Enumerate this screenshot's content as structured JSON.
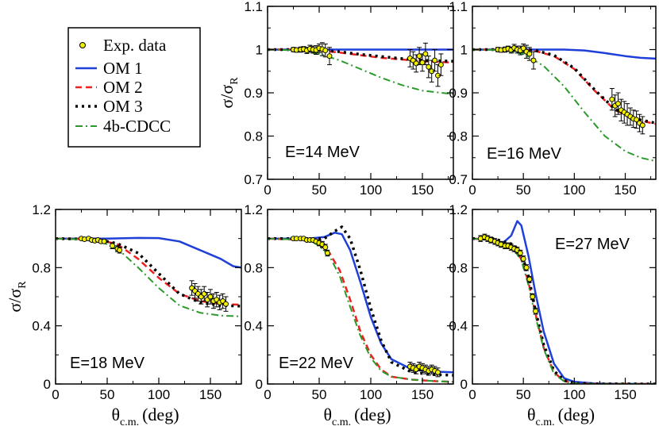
{
  "figure": {
    "x_label_main": "θ",
    "x_label_sub": "c.m.",
    "x_label_unit": "(deg)",
    "y_label_main": "σ/σ",
    "y_label_sub": "R"
  },
  "legend": [
    {
      "label": "Exp. data",
      "style": "marker",
      "color": "#f0f000"
    },
    {
      "label": "OM 1",
      "style": "solid",
      "color": "#1f3fd9"
    },
    {
      "label": "OM 2",
      "style": "dashed",
      "color": "#ee2020"
    },
    {
      "label": "OM 3",
      "style": "dotted",
      "color": "#000000"
    },
    {
      "label": "4b-CDCC",
      "style": "dashdot",
      "color": "#2a9a2a"
    }
  ],
  "chart_data": [
    {
      "type": "line",
      "panel_label": "E=14 MeV",
      "xlim": [
        0,
        180
      ],
      "ylim": [
        0.7,
        1.1
      ],
      "xticks": [
        "0",
        "50",
        "100",
        "150"
      ],
      "xtick_values": [
        0,
        50,
        100,
        150
      ],
      "yticks": [
        "0.7",
        "0.8",
        "0.9",
        "1",
        "1.1"
      ],
      "ytick_values": [
        0.7,
        0.8,
        0.9,
        1.0,
        1.1
      ],
      "show_xlabel": false,
      "show_ylabel": true,
      "series": [
        {
          "name": "OM 1",
          "x": [
            0,
            180
          ],
          "y": [
            1.0,
            1.0
          ]
        },
        {
          "name": "OM 2",
          "x": [
            0,
            30,
            50,
            70,
            90,
            110,
            130,
            150,
            180
          ],
          "y": [
            1.0,
            1.0,
            0.998,
            0.993,
            0.987,
            0.981,
            0.977,
            0.973,
            0.97
          ]
        },
        {
          "name": "OM 3",
          "x": [
            0,
            30,
            50,
            70,
            90,
            110,
            130,
            150,
            180
          ],
          "y": [
            1.0,
            1.0,
            0.999,
            0.995,
            0.989,
            0.984,
            0.979,
            0.975,
            0.973
          ]
        },
        {
          "name": "4b-CDCC",
          "x": [
            0,
            30,
            50,
            70,
            90,
            110,
            130,
            150,
            180
          ],
          "y": [
            1.0,
            0.998,
            0.99,
            0.975,
            0.955,
            0.935,
            0.918,
            0.905,
            0.897
          ]
        }
      ],
      "exp_data": {
        "x": [
          25,
          28,
          32,
          35,
          38,
          41,
          44,
          47,
          50,
          53,
          56,
          60,
          138,
          141,
          144,
          147,
          150,
          153,
          156,
          159,
          162,
          165,
          168
        ],
        "y": [
          1.0,
          0.999,
          1.0,
          1.001,
          0.998,
          1.002,
          1.0,
          0.999,
          1.003,
          1.001,
          0.998,
          0.985,
          0.98,
          0.975,
          0.968,
          0.985,
          0.97,
          0.99,
          0.96,
          0.95,
          0.975,
          0.94,
          0.965
        ],
        "err": [
          0.005,
          0.005,
          0.006,
          0.006,
          0.007,
          0.008,
          0.008,
          0.01,
          0.01,
          0.015,
          0.015,
          0.02,
          0.02,
          0.02,
          0.02,
          0.02,
          0.02,
          0.025,
          0.025,
          0.025,
          0.025,
          0.025,
          0.025
        ]
      }
    },
    {
      "type": "line",
      "panel_label": "E=16 MeV",
      "xlim": [
        0,
        180
      ],
      "ylim": [
        0.7,
        1.1
      ],
      "xticks": [
        "0",
        "50",
        "100",
        "150"
      ],
      "xtick_values": [
        0,
        50,
        100,
        150
      ],
      "yticks": [
        "0.7",
        "0.8",
        "0.9",
        "1",
        "1.1"
      ],
      "ytick_values": [
        0.7,
        0.8,
        0.9,
        1.0,
        1.1
      ],
      "show_xlabel": false,
      "show_ylabel": false,
      "series": [
        {
          "name": "OM 1",
          "x": [
            0,
            60,
            90,
            110,
            130,
            150,
            165,
            180
          ],
          "y": [
            1.0,
            1.0,
            1.0,
            0.998,
            0.992,
            0.985,
            0.981,
            0.979
          ]
        },
        {
          "name": "OM 2",
          "x": [
            0,
            40,
            60,
            80,
            100,
            120,
            140,
            160,
            180
          ],
          "y": [
            1.0,
            1.0,
            0.998,
            0.985,
            0.955,
            0.905,
            0.86,
            0.838,
            0.828
          ]
        },
        {
          "name": "OM 3",
          "x": [
            0,
            40,
            60,
            80,
            100,
            120,
            140,
            160,
            180
          ],
          "y": [
            1.0,
            1.0,
            0.999,
            0.987,
            0.957,
            0.907,
            0.862,
            0.84,
            0.83
          ]
        },
        {
          "name": "4b-CDCC",
          "x": [
            0,
            30,
            50,
            70,
            90,
            110,
            130,
            150,
            165,
            180
          ],
          "y": [
            1.0,
            0.999,
            0.99,
            0.962,
            0.915,
            0.855,
            0.8,
            0.765,
            0.75,
            0.742
          ]
        }
      ],
      "exp_data": {
        "x": [
          25,
          28,
          32,
          35,
          38,
          41,
          44,
          47,
          50,
          53,
          56,
          60,
          137,
          140,
          143,
          146,
          149,
          152,
          155,
          158,
          161,
          164,
          167
        ],
        "y": [
          1.0,
          0.999,
          1.0,
          1.002,
          0.999,
          1.004,
          1.0,
          0.998,
          1.003,
          0.995,
          0.99,
          0.975,
          0.885,
          0.87,
          0.875,
          0.86,
          0.855,
          0.85,
          0.845,
          0.84,
          0.838,
          0.83,
          0.825
        ],
        "err": [
          0.005,
          0.005,
          0.006,
          0.006,
          0.007,
          0.008,
          0.008,
          0.01,
          0.01,
          0.015,
          0.015,
          0.02,
          0.025,
          0.025,
          0.025,
          0.025,
          0.025,
          0.025,
          0.02,
          0.02,
          0.02,
          0.02,
          0.02
        ]
      }
    },
    {
      "type": "line",
      "panel_label": "E=18 MeV",
      "xlim": [
        0,
        180
      ],
      "ylim": [
        0,
        1.2
      ],
      "xticks": [
        "0",
        "50",
        "100",
        "150"
      ],
      "xtick_values": [
        0,
        50,
        100,
        150
      ],
      "yticks": [
        "0",
        "0.4",
        "0.8",
        "1.2"
      ],
      "ytick_values": [
        0,
        0.4,
        0.8,
        1.2
      ],
      "show_xlabel": false,
      "show_ylabel": true,
      "series": [
        {
          "name": "OM 1",
          "x": [
            0,
            50,
            80,
            100,
            120,
            140,
            160,
            172,
            180
          ],
          "y": [
            1.0,
            1.0,
            1.004,
            1.003,
            0.98,
            0.92,
            0.86,
            0.81,
            0.8
          ]
        },
        {
          "name": "OM 2",
          "x": [
            0,
            40,
            60,
            80,
            100,
            120,
            140,
            160,
            180
          ],
          "y": [
            1.0,
            0.995,
            0.96,
            0.86,
            0.73,
            0.62,
            0.57,
            0.55,
            0.545
          ]
        },
        {
          "name": "OM 3",
          "x": [
            0,
            40,
            60,
            80,
            100,
            120,
            140,
            160,
            180
          ],
          "y": [
            1.0,
            0.995,
            0.965,
            0.9,
            0.76,
            0.62,
            0.56,
            0.54,
            0.535
          ]
        },
        {
          "name": "4b-CDCC",
          "x": [
            0,
            40,
            60,
            80,
            100,
            120,
            140,
            160,
            180
          ],
          "y": [
            1.0,
            0.99,
            0.93,
            0.8,
            0.66,
            0.54,
            0.49,
            0.47,
            0.465
          ]
        }
      ],
      "exp_data": {
        "x": [
          25,
          28,
          32,
          35,
          38,
          41,
          44,
          47,
          55,
          60,
          62,
          132,
          135,
          138,
          141,
          144,
          147,
          150,
          153,
          156,
          159,
          162,
          165
        ],
        "y": [
          1.0,
          0.995,
          1.0,
          0.99,
          0.985,
          0.99,
          0.98,
          0.98,
          0.95,
          0.93,
          0.92,
          0.66,
          0.64,
          0.62,
          0.6,
          0.62,
          0.58,
          0.6,
          0.57,
          0.58,
          0.56,
          0.57,
          0.55
        ],
        "err": [
          0.01,
          0.01,
          0.01,
          0.01,
          0.01,
          0.01,
          0.01,
          0.01,
          0.02,
          0.02,
          0.02,
          0.05,
          0.05,
          0.05,
          0.05,
          0.05,
          0.05,
          0.05,
          0.05,
          0.05,
          0.05,
          0.05,
          0.05
        ]
      }
    },
    {
      "type": "line",
      "panel_label": "E=22 MeV",
      "xlim": [
        0,
        180
      ],
      "ylim": [
        0,
        1.2
      ],
      "xticks": [
        "0",
        "50",
        "100",
        "150"
      ],
      "xtick_values": [
        0,
        50,
        100,
        150
      ],
      "yticks": [
        "0",
        "0.4",
        "0.8",
        "1.2"
      ],
      "ytick_values": [
        0,
        0.4,
        0.8,
        1.2
      ],
      "show_xlabel": true,
      "show_ylabel": false,
      "series": [
        {
          "name": "OM 1",
          "x": [
            0,
            40,
            55,
            65,
            72,
            80,
            90,
            100,
            110,
            120,
            140,
            160,
            180
          ],
          "y": [
            1.0,
            1.0,
            1.01,
            1.04,
            1.03,
            0.92,
            0.7,
            0.46,
            0.28,
            0.17,
            0.1,
            0.085,
            0.08
          ]
        },
        {
          "name": "OM 2",
          "x": [
            0,
            40,
            50,
            60,
            70,
            80,
            90,
            100,
            110,
            120,
            140,
            160,
            180
          ],
          "y": [
            1.0,
            0.99,
            0.96,
            0.9,
            0.78,
            0.58,
            0.36,
            0.2,
            0.1,
            0.05,
            0.03,
            0.02,
            0.015
          ]
        },
        {
          "name": "OM 3",
          "x": [
            0,
            40,
            55,
            65,
            72,
            80,
            90,
            100,
            110,
            120,
            140,
            160,
            180
          ],
          "y": [
            1.0,
            1.0,
            1.0,
            1.05,
            1.08,
            1.0,
            0.78,
            0.52,
            0.3,
            0.15,
            0.08,
            0.065,
            0.06
          ]
        },
        {
          "name": "4b-CDCC",
          "x": [
            0,
            40,
            50,
            60,
            70,
            80,
            90,
            100,
            110,
            120,
            140,
            160,
            180
          ],
          "y": [
            1.0,
            0.99,
            0.95,
            0.88,
            0.74,
            0.53,
            0.33,
            0.18,
            0.09,
            0.05,
            0.03,
            0.02,
            0.015
          ]
        }
      ],
      "exp_data": {
        "x": [
          25,
          28,
          32,
          35,
          38,
          41,
          44,
          47,
          50,
          53,
          56,
          58,
          138,
          141,
          144,
          147,
          150,
          153,
          156,
          159,
          162,
          165
        ],
        "y": [
          1.0,
          1.0,
          1.0,
          1.0,
          0.99,
          0.99,
          0.99,
          0.98,
          0.97,
          0.96,
          0.94,
          0.9,
          0.12,
          0.11,
          0.1,
          0.12,
          0.11,
          0.1,
          0.09,
          0.1,
          0.09,
          0.08
        ],
        "err": [
          0.01,
          0.01,
          0.01,
          0.01,
          0.01,
          0.01,
          0.01,
          0.01,
          0.02,
          0.02,
          0.02,
          0.02,
          0.03,
          0.03,
          0.03,
          0.03,
          0.03,
          0.03,
          0.03,
          0.03,
          0.03,
          0.03
        ]
      }
    },
    {
      "type": "line",
      "panel_label": "E=27 MeV",
      "xlim": [
        0,
        180
      ],
      "ylim": [
        0,
        1.2
      ],
      "xticks": [
        "0",
        "50",
        "100",
        "150"
      ],
      "xtick_values": [
        0,
        50,
        100,
        150
      ],
      "yticks": [
        "0",
        "0.4",
        "0.8",
        "1.2"
      ],
      "ytick_values": [
        0,
        0.4,
        0.8,
        1.2
      ],
      "show_xlabel": true,
      "show_ylabel": false,
      "series": [
        {
          "name": "OM 1",
          "x": [
            0,
            20,
            30,
            38,
            44,
            48,
            55,
            62,
            70,
            80,
            90,
            100,
            120,
            140,
            180
          ],
          "y": [
            1.0,
            0.99,
            0.97,
            1.02,
            1.12,
            1.09,
            0.88,
            0.62,
            0.36,
            0.14,
            0.04,
            0.015,
            0.003,
            0.001,
            0.0
          ]
        },
        {
          "name": "OM 2",
          "x": [
            0,
            20,
            30,
            40,
            48,
            55,
            62,
            70,
            80,
            90,
            100,
            120,
            180
          ],
          "y": [
            1.0,
            0.99,
            0.96,
            0.93,
            0.86,
            0.7,
            0.48,
            0.25,
            0.08,
            0.02,
            0.005,
            0.001,
            0.0
          ]
        },
        {
          "name": "OM 3",
          "x": [
            0,
            20,
            30,
            40,
            48,
            55,
            62,
            70,
            80,
            90,
            100,
            120,
            180
          ],
          "y": [
            1.0,
            1.0,
            0.98,
            0.96,
            0.9,
            0.74,
            0.5,
            0.27,
            0.09,
            0.025,
            0.006,
            0.001,
            0.0
          ]
        },
        {
          "name": "4b-CDCC",
          "x": [
            0,
            20,
            30,
            40,
            48,
            55,
            62,
            70,
            80,
            90,
            100,
            120,
            180
          ],
          "y": [
            1.0,
            0.99,
            0.96,
            0.93,
            0.85,
            0.68,
            0.46,
            0.24,
            0.07,
            0.018,
            0.004,
            0.001,
            0.0
          ]
        }
      ],
      "exp_data": {
        "x": [
          8,
          12,
          15,
          18,
          22,
          25,
          28,
          32,
          35,
          38,
          41,
          44,
          47,
          50,
          53,
          56,
          59,
          62
        ],
        "y": [
          1.0,
          1.01,
          1.0,
          0.99,
          0.98,
          0.97,
          0.96,
          0.95,
          0.95,
          0.94,
          0.93,
          0.92,
          0.9,
          0.86,
          0.8,
          0.72,
          0.6,
          0.5
        ],
        "err": [
          0.02,
          0.02,
          0.02,
          0.02,
          0.02,
          0.02,
          0.02,
          0.02,
          0.02,
          0.02,
          0.02,
          0.02,
          0.02,
          0.02,
          0.02,
          0.02,
          0.02,
          0.02
        ]
      }
    }
  ]
}
